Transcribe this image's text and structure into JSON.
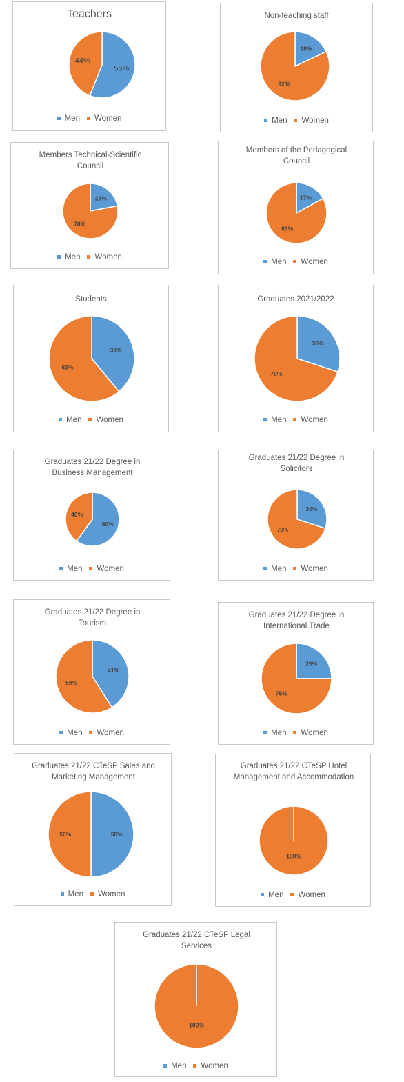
{
  "colors": {
    "men": "#5B9BD5",
    "women": "#ED7D31"
  },
  "chart_data": [
    {
      "type": "pie",
      "title": "Teachers",
      "categories": [
        "Men",
        "Women"
      ],
      "values": [
        56,
        44
      ],
      "labels": [
        "56%",
        "44%"
      ],
      "legend": [
        "Men",
        "Women"
      ],
      "legend_position": "bottom"
    },
    {
      "type": "pie",
      "title": "Non-teaching staff",
      "categories": [
        "Men",
        "Women"
      ],
      "values": [
        18,
        82
      ],
      "labels": [
        "18%",
        "82%"
      ],
      "legend": [
        "Men",
        "Women"
      ],
      "legend_position": "bottom"
    },
    {
      "type": "pie",
      "title": "Members Technical-Scientific Council",
      "categories": [
        "Men",
        "Women"
      ],
      "values": [
        22,
        78
      ],
      "labels": [
        "22%",
        "78%"
      ],
      "legend": [
        "Men",
        "Women"
      ],
      "legend_position": "bottom"
    },
    {
      "type": "pie",
      "title": "Members of the Pedagogical Council",
      "categories": [
        "Men",
        "Women"
      ],
      "values": [
        17,
        83
      ],
      "labels": [
        "17%",
        "83%"
      ],
      "legend": [
        "Men",
        "Women"
      ],
      "legend_position": "bottom"
    },
    {
      "type": "pie",
      "title": "Students",
      "categories": [
        "Men",
        "Women"
      ],
      "values": [
        39,
        61
      ],
      "labels": [
        "39%",
        "61%"
      ],
      "legend": [
        "Men",
        "Women"
      ],
      "legend_position": "bottom"
    },
    {
      "type": "pie",
      "title": "Graduates 2021/2022",
      "categories": [
        "Men",
        "Women"
      ],
      "values": [
        30,
        70
      ],
      "labels": [
        "30%",
        "70%"
      ],
      "legend": [
        "Men",
        "Women"
      ],
      "legend_position": "bottom"
    },
    {
      "type": "pie",
      "title": "Graduates 21/22 Degree  in Business Management",
      "categories": [
        "Men",
        "Women"
      ],
      "values": [
        60,
        40
      ],
      "labels": [
        "60%",
        "40%"
      ],
      "legend": [
        "Men",
        "Women"
      ],
      "legend_position": "bottom"
    },
    {
      "type": "pie",
      "title": "Graduates 21/22 Degree  in Solicitors",
      "categories": [
        "Men",
        "Women"
      ],
      "values": [
        30,
        70
      ],
      "labels": [
        "30%",
        "70%"
      ],
      "legend": [
        "Men",
        "Women"
      ],
      "legend_position": "bottom"
    },
    {
      "type": "pie",
      "title": "Graduates 21/22 Degree  in Tourism",
      "categories": [
        "Men",
        "Women"
      ],
      "values": [
        41,
        59
      ],
      "labels": [
        "41%",
        "59%"
      ],
      "legend": [
        "Men",
        "Women"
      ],
      "legend_position": "bottom"
    },
    {
      "type": "pie",
      "title": "Graduates 21/22 Degree  in International Trade",
      "categories": [
        "Men",
        "Women"
      ],
      "values": [
        25,
        75
      ],
      "labels": [
        "25%",
        "75%"
      ],
      "legend": [
        "Men",
        "Women"
      ],
      "legend_position": "bottom"
    },
    {
      "type": "pie",
      "title": "Graduates 21/22 CTeSP  Sales and Marketing Management",
      "categories": [
        "Men",
        "Women"
      ],
      "values": [
        50,
        50
      ],
      "labels": [
        "50%",
        "50%"
      ],
      "legend": [
        "Men",
        "Women"
      ],
      "legend_position": "bottom"
    },
    {
      "type": "pie",
      "title": "Graduates 21/22 CTeSP  Hotel Management and Accommodation",
      "categories": [
        "Men",
        "Women"
      ],
      "values": [
        0,
        100
      ],
      "labels": [
        "",
        "100%"
      ],
      "legend": [
        "Men",
        "Women"
      ],
      "legend_position": "bottom"
    },
    {
      "type": "pie",
      "title": "Graduates 21/22 CTeSP  Legal Services",
      "categories": [
        "Men",
        "Women"
      ],
      "values": [
        0,
        100
      ],
      "labels": [
        "",
        "100%"
      ],
      "legend": [
        "Men",
        "Women"
      ],
      "legend_position": "bottom"
    }
  ]
}
